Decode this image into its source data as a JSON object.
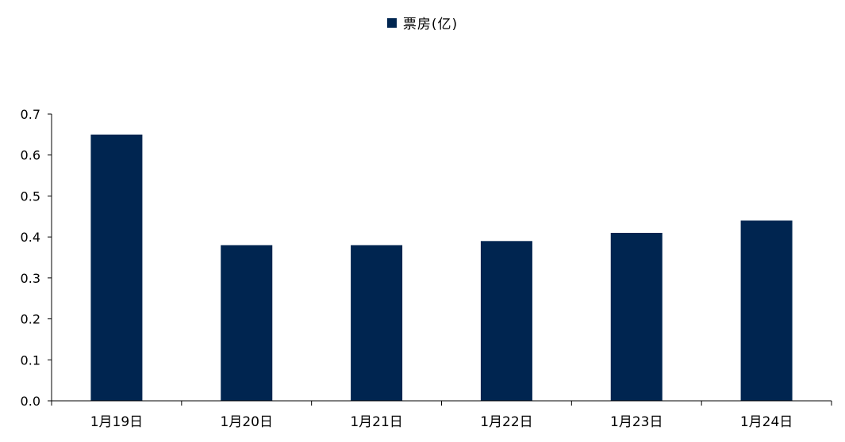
{
  "chart_data": {
    "type": "bar",
    "categories": [
      "1月19日",
      "1月20日",
      "1月21日",
      "1月22日",
      "1月23日",
      "1月24日"
    ],
    "series": [
      {
        "name": "票房(亿)",
        "values": [
          0.65,
          0.38,
          0.38,
          0.39,
          0.41,
          0.44
        ]
      }
    ],
    "title": "",
    "xlabel": "",
    "ylabel": "",
    "ylim": [
      0,
      0.7
    ],
    "yticks": [
      "0.0",
      "0.1",
      "0.2",
      "0.3",
      "0.4",
      "0.5",
      "0.6",
      "0.7"
    ],
    "grid": false,
    "legend_position": "top-center"
  },
  "colors": {
    "bar": "#002550",
    "axis": "#000000"
  }
}
